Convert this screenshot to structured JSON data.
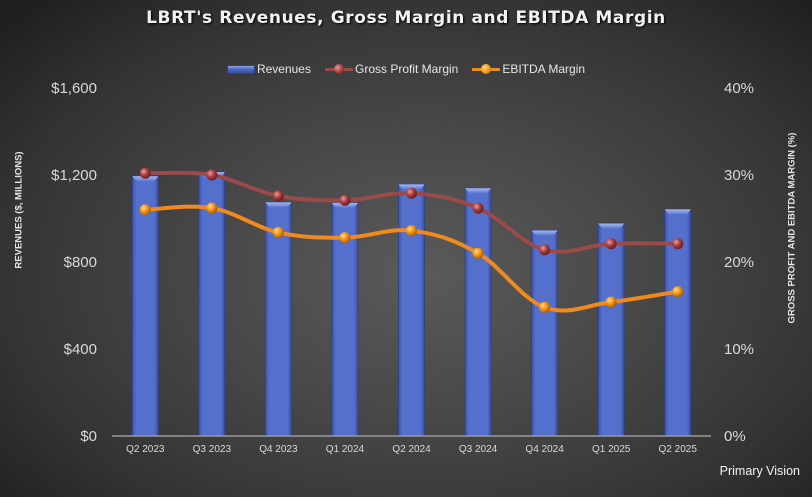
{
  "chart_data": {
    "type": "bar",
    "title": "LBRT's Revenues, Gross Margin and EBITDA Margin",
    "categories": [
      "Q2 2023",
      "Q3 2023",
      "Q4 2023",
      "Q1 2024",
      "Q2 2024",
      "Q3 2024",
      "Q4 2024",
      "Q1 2025",
      "Q2 2025"
    ],
    "series": [
      {
        "name": "Revenues",
        "type": "bar",
        "axis": "left",
        "color": "#4f6cc9",
        "values": [
          1194,
          1213,
          1074,
          1072,
          1157,
          1139,
          945,
          977,
          1042
        ]
      },
      {
        "name": "Gross Profit Margin",
        "type": "line",
        "axis": "right",
        "color": "#9b4a4a",
        "values": [
          30.2,
          30.0,
          27.6,
          27.1,
          27.9,
          26.2,
          21.4,
          22.1,
          22.1
        ]
      },
      {
        "name": "EBITDA Margin",
        "type": "line",
        "axis": "right",
        "color": "#f08a1c",
        "values": [
          26.0,
          26.2,
          23.4,
          22.8,
          23.6,
          21.0,
          14.8,
          15.4,
          16.6
        ]
      }
    ],
    "ylabel": "REVENUES ($, MILLIONS)",
    "y2label": "GROSS PROFIT AND EBITDA MARGIN (%)",
    "ylim": [
      0,
      1600
    ],
    "y2lim": [
      0,
      40
    ],
    "yticks": [
      "$0",
      "$400",
      "$800",
      "$1,200",
      "$1,600"
    ],
    "y2ticks": [
      "0%",
      "10%",
      "20%",
      "30%",
      "40%"
    ],
    "legend_position": "top",
    "grid": false
  },
  "source": "Primary Vision"
}
